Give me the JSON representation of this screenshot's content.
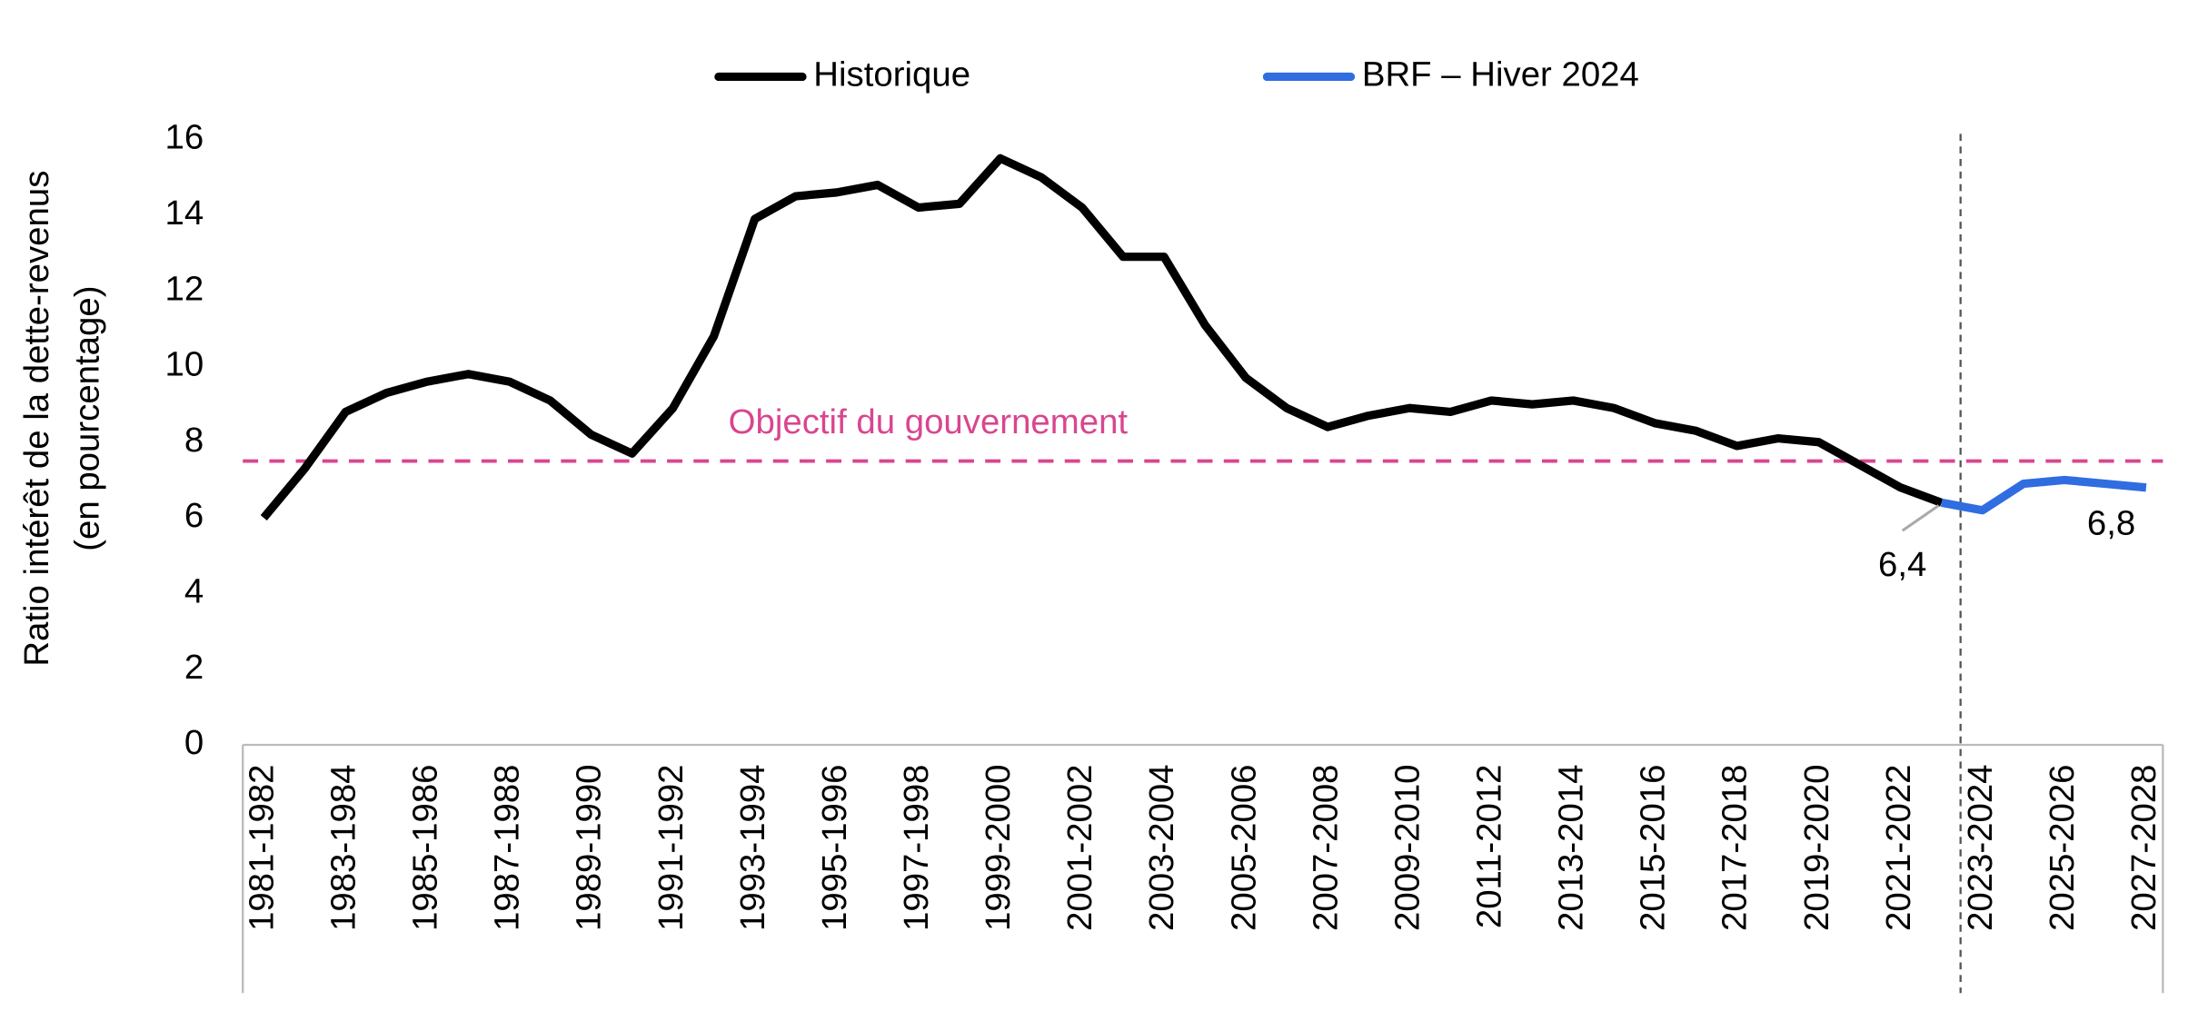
{
  "chart_data": {
    "type": "line",
    "ylabel": [
      "Ratio intérêt de la dette-revenus",
      "(en pourcentage)"
    ],
    "categories": [
      "1981-1982",
      null,
      "1983-1984",
      null,
      "1985-1986",
      null,
      "1987-1988",
      null,
      "1989-1990",
      null,
      "1991-1992",
      null,
      "1993-1994",
      null,
      "1995-1996",
      null,
      "1997-1998",
      null,
      "1999-2000",
      null,
      "2001-2002",
      null,
      "2003-2004",
      null,
      "2005-2006",
      null,
      "2007-2008",
      null,
      "2009-2010",
      null,
      "2011-2012",
      null,
      "2013-2014",
      null,
      "2015-2016",
      null,
      "2017-2018",
      null,
      "2019-2020",
      null,
      "2021-2022",
      null,
      "2023-2024",
      null,
      "2025-2026",
      null,
      "2027-2028"
    ],
    "series": [
      {
        "name": "Historique",
        "color": "#000000",
        "values": [
          6.0,
          7.3,
          8.8,
          9.3,
          9.6,
          9.8,
          9.6,
          9.1,
          8.2,
          7.7,
          8.9,
          10.8,
          13.9,
          14.5,
          14.6,
          14.8,
          14.2,
          14.3,
          15.5,
          15.0,
          14.2,
          12.9,
          12.9,
          11.1,
          9.7,
          8.9,
          8.4,
          8.7,
          8.9,
          8.8,
          9.1,
          9.0,
          9.1,
          8.9,
          8.5,
          8.3,
          7.9,
          8.1,
          8.0,
          7.4,
          6.8,
          6.4,
          null,
          null,
          null,
          null,
          null
        ],
        "value_labels": [
          null,
          null,
          null,
          null,
          null,
          null,
          null,
          null,
          null,
          null,
          null,
          null,
          null,
          null,
          null,
          null,
          null,
          null,
          null,
          null,
          null,
          null,
          null,
          null,
          null,
          null,
          null,
          null,
          null,
          null,
          null,
          null,
          null,
          null,
          null,
          null,
          null,
          null,
          null,
          null,
          null,
          "6,4",
          null,
          null,
          null,
          null,
          null
        ]
      },
      {
        "name": "BRF – Hiver 2024",
        "color": "#2f6de1",
        "values": [
          null,
          null,
          null,
          null,
          null,
          null,
          null,
          null,
          null,
          null,
          null,
          null,
          null,
          null,
          null,
          null,
          null,
          null,
          null,
          null,
          null,
          null,
          null,
          null,
          null,
          null,
          null,
          null,
          null,
          null,
          null,
          null,
          null,
          null,
          null,
          null,
          null,
          null,
          null,
          null,
          null,
          6.4,
          6.2,
          6.9,
          7.0,
          6.9,
          6.8
        ],
        "value_labels": [
          null,
          null,
          null,
          null,
          null,
          null,
          null,
          null,
          null,
          null,
          null,
          null,
          null,
          null,
          null,
          null,
          null,
          null,
          null,
          null,
          null,
          null,
          null,
          null,
          null,
          null,
          null,
          null,
          null,
          null,
          null,
          null,
          null,
          null,
          null,
          null,
          null,
          null,
          null,
          null,
          null,
          null,
          null,
          null,
          null,
          null,
          "6,8"
        ]
      }
    ],
    "target": {
      "value": 7.5,
      "label": "Objectif du gouvernement",
      "color": "#d9468f"
    },
    "ylim": [
      0,
      16
    ],
    "yticks": [
      0,
      2,
      4,
      6,
      8,
      10,
      12,
      14,
      16
    ],
    "legend": "top"
  }
}
